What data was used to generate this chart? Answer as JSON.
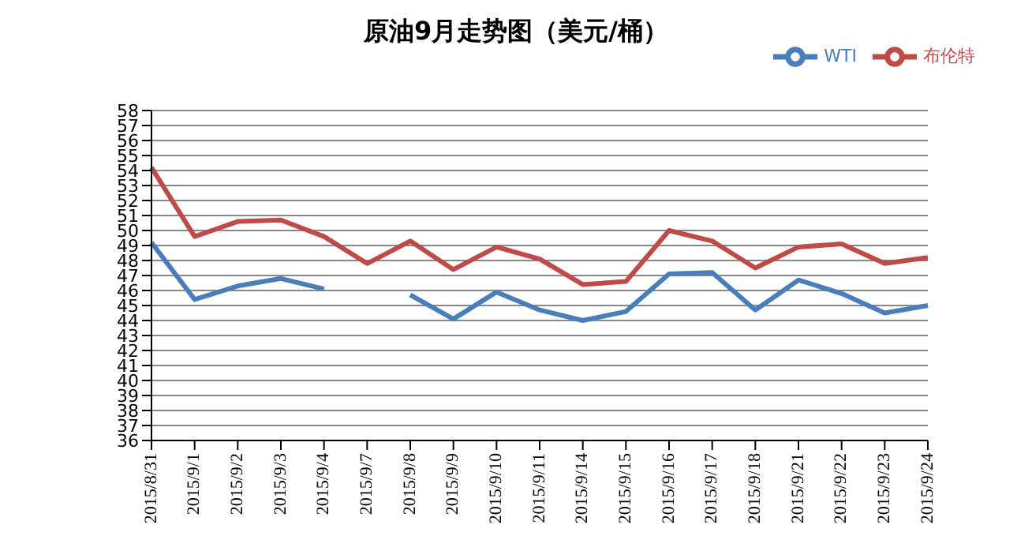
{
  "chart_data": {
    "type": "line",
    "title": "原油9月走势图（美元/桶）",
    "categories": [
      "2015/8/31",
      "2015/9/1",
      "2015/9/2",
      "2015/9/3",
      "2015/9/4",
      "2015/9/7",
      "2015/9/8",
      "2015/9/9",
      "2015/9/10",
      "2015/9/11",
      "2015/9/14",
      "2015/9/15",
      "2015/9/16",
      "2015/9/17",
      "2015/9/18",
      "2015/9/21",
      "2015/9/22",
      "2015/9/23",
      "2015/9/24"
    ],
    "series": [
      {
        "name": "WTI",
        "color": "#4a7ebb",
        "values": [
          49.2,
          45.4,
          46.3,
          46.8,
          46.1,
          null,
          45.7,
          44.1,
          45.9,
          44.7,
          44.0,
          44.6,
          47.1,
          47.2,
          44.7,
          46.7,
          45.8,
          44.5,
          45.0
        ]
      },
      {
        "name": "布伦特",
        "color": "#be4b48",
        "values": [
          54.2,
          49.6,
          50.6,
          50.7,
          49.6,
          47.8,
          49.3,
          47.4,
          48.9,
          48.1,
          46.4,
          46.6,
          50.0,
          49.3,
          47.5,
          48.9,
          49.1,
          47.8,
          48.2
        ]
      }
    ],
    "ylim": [
      36,
      58
    ],
    "yticks": [
      36,
      37,
      38,
      39,
      40,
      41,
      42,
      43,
      44,
      45,
      46,
      47,
      48,
      49,
      50,
      51,
      52,
      53,
      54,
      55,
      56,
      57,
      58
    ],
    "grid": "y",
    "legend": "top right",
    "marker": "none",
    "line_style": "solid"
  }
}
